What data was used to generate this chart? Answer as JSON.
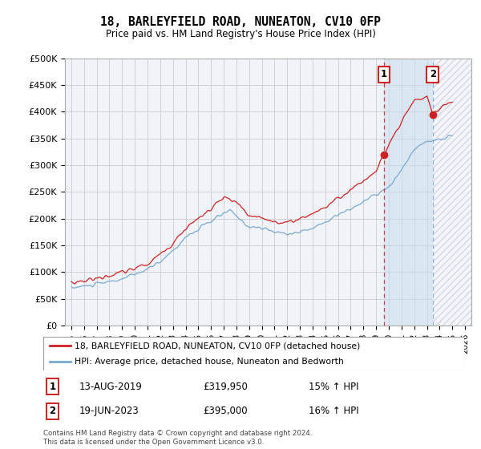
{
  "title": "18, BARLEYFIELD ROAD, NUNEATON, CV10 0FP",
  "subtitle": "Price paid vs. HM Land Registry's House Price Index (HPI)",
  "ylim": [
    0,
    500000
  ],
  "yticks": [
    0,
    50000,
    100000,
    150000,
    200000,
    250000,
    300000,
    350000,
    400000,
    450000,
    500000
  ],
  "ytick_labels": [
    "£0",
    "£50K",
    "£100K",
    "£150K",
    "£200K",
    "£250K",
    "£300K",
    "£350K",
    "£400K",
    "£450K",
    "£500K"
  ],
  "hpi_color": "#7aa8d2",
  "price_color": "#cc2222",
  "background_color": "#ffffff",
  "grid_color": "#cccccc",
  "plot_bg": "#f0f4f8",
  "sale1": {
    "date": "13-AUG-2019",
    "price": 319950,
    "label": "1",
    "pct": "15%",
    "direction": "↑"
  },
  "sale2": {
    "date": "19-JUN-2023",
    "price": 395000,
    "label": "2",
    "pct": "16%",
    "direction": "↑"
  },
  "legend_line1": "18, BARLEYFIELD ROAD, NUNEATON, CV10 0FP (detached house)",
  "legend_line2": "HPI: Average price, detached house, Nuneaton and Bedworth",
  "footer": "Contains HM Land Registry data © Crown copyright and database right 2024.\nThis data is licensed under the Open Government Licence v3.0.",
  "sale1_x": 2019.62,
  "sale2_x": 2023.46,
  "xmin": 1994.5,
  "xmax": 2026.5
}
